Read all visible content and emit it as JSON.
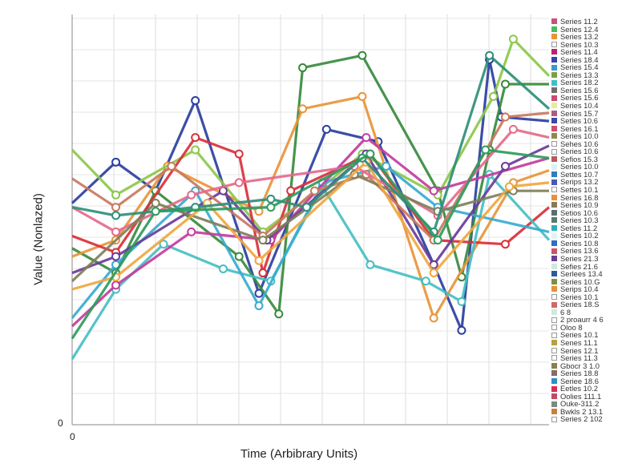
{
  "chart_data": {
    "type": "line",
    "title": "",
    "xlabel": "Time (Arbibrary Units)",
    "ylabel": "Value (Nonlazed)",
    "x_tick_labels": [
      "0"
    ],
    "y_tick_labels": [
      "0"
    ],
    "xlim": [
      0,
      12
    ],
    "ylim": [
      0,
      100
    ],
    "grid": true,
    "legend_position": "right",
    "series": [
      {
        "color": "#2b3fa0",
        "points": [
          [
            0,
            54
          ],
          [
            1.1,
            64
          ],
          [
            2.1,
            57
          ],
          [
            3.1,
            79
          ],
          [
            4.7,
            32
          ],
          [
            6.4,
            72
          ],
          [
            7.7,
            69
          ],
          [
            9.1,
            39
          ],
          [
            9.8,
            23
          ],
          [
            10.5,
            89
          ],
          [
            10.8,
            75
          ],
          [
            12,
            74
          ]
        ]
      },
      {
        "color": "#3a8a3e",
        "points": [
          [
            0,
            43
          ],
          [
            1.1,
            37
          ],
          [
            2.1,
            57
          ],
          [
            4.2,
            41
          ],
          [
            5.2,
            27
          ],
          [
            5.8,
            87
          ],
          [
            7.3,
            90
          ],
          [
            9.2,
            57
          ],
          [
            9.8,
            36
          ],
          [
            10.5,
            67
          ],
          [
            10.9,
            83
          ],
          [
            12,
            83
          ]
        ]
      },
      {
        "color": "#e8953a",
        "points": [
          [
            0,
            41
          ],
          [
            1.1,
            45
          ],
          [
            2.4,
            63
          ],
          [
            4.7,
            52
          ],
          [
            5.8,
            77
          ],
          [
            7.3,
            80
          ],
          [
            9.1,
            26
          ],
          [
            11.1,
            59
          ],
          [
            12,
            62
          ]
        ]
      },
      {
        "color": "#8cc84b",
        "points": [
          [
            0,
            67
          ],
          [
            1.1,
            56
          ],
          [
            3.1,
            67
          ],
          [
            4.8,
            47
          ],
          [
            6.3,
            58
          ],
          [
            7.3,
            66
          ],
          [
            9.2,
            56
          ],
          [
            10.6,
            80
          ],
          [
            11.1,
            94
          ],
          [
            12,
            85
          ]
        ]
      },
      {
        "color": "#d9303a",
        "points": [
          [
            0,
            46
          ],
          [
            1.1,
            42
          ],
          [
            3.1,
            70
          ],
          [
            4.2,
            66
          ],
          [
            4.8,
            37
          ],
          [
            5.5,
            57
          ],
          [
            7.5,
            66
          ],
          [
            9.1,
            45
          ],
          [
            10.9,
            44
          ],
          [
            12,
            53
          ]
        ]
      },
      {
        "color": "#47bfc2",
        "points": [
          [
            0,
            16
          ],
          [
            1.1,
            33
          ],
          [
            2.3,
            44
          ],
          [
            3.8,
            38
          ],
          [
            5.0,
            35
          ],
          [
            6.3,
            58
          ],
          [
            7.5,
            39
          ],
          [
            8.9,
            35
          ],
          [
            9.8,
            30
          ],
          [
            10.5,
            61
          ],
          [
            12,
            45
          ]
        ]
      },
      {
        "color": "#3aaad0",
        "points": [
          [
            0,
            26
          ],
          [
            1.1,
            39
          ],
          [
            3.1,
            57
          ],
          [
            4.7,
            29
          ],
          [
            6.3,
            59
          ],
          [
            7.9,
            63
          ],
          [
            9.2,
            53
          ],
          [
            12,
            47
          ]
        ]
      },
      {
        "color": "#c33da0",
        "points": [
          [
            0,
            24
          ],
          [
            1.1,
            34
          ],
          [
            3.0,
            47
          ],
          [
            5.0,
            45
          ],
          [
            7.4,
            70
          ],
          [
            9.1,
            57
          ],
          [
            12,
            65
          ]
        ]
      },
      {
        "color": "#6a3d9a",
        "points": [
          [
            0,
            37
          ],
          [
            1.1,
            41
          ],
          [
            3.8,
            57
          ],
          [
            4.9,
            45
          ],
          [
            7.4,
            66
          ],
          [
            9.1,
            39
          ],
          [
            10.9,
            63
          ],
          [
            12,
            68
          ]
        ]
      },
      {
        "color": "#c87a5e",
        "points": [
          [
            0,
            60
          ],
          [
            1.1,
            53
          ],
          [
            2.5,
            63
          ],
          [
            4.8,
            46
          ],
          [
            6.1,
            57
          ],
          [
            7.4,
            61
          ],
          [
            9.1,
            45
          ],
          [
            10.9,
            75
          ],
          [
            12,
            76
          ]
        ]
      },
      {
        "color": "#e56a8c",
        "points": [
          [
            0,
            53
          ],
          [
            1.1,
            47
          ],
          [
            3.0,
            56
          ],
          [
            4.2,
            59
          ],
          [
            7.1,
            63
          ],
          [
            9.2,
            51
          ],
          [
            11.1,
            72
          ],
          [
            12,
            70
          ]
        ]
      },
      {
        "color": "#7f7f5a",
        "points": [
          [
            0,
            35
          ],
          [
            2.1,
            54
          ],
          [
            4.8,
            45
          ],
          [
            7.1,
            61
          ],
          [
            9.2,
            52
          ],
          [
            11.1,
            57
          ],
          [
            12,
            57
          ]
        ]
      },
      {
        "color": "#f0a640",
        "points": [
          [
            0,
            33
          ],
          [
            1.1,
            36
          ],
          [
            3.4,
            54
          ],
          [
            4.7,
            40
          ],
          [
            7.4,
            64
          ],
          [
            9.1,
            37
          ],
          [
            11.0,
            58
          ],
          [
            12,
            59
          ]
        ]
      },
      {
        "color": "#2f8f7a",
        "points": [
          [
            0,
            53
          ],
          [
            1.1,
            51
          ],
          [
            3.1,
            53
          ],
          [
            5.0,
            55
          ],
          [
            5.9,
            53
          ],
          [
            7.3,
            65
          ],
          [
            9.1,
            47
          ],
          [
            10.5,
            90
          ],
          [
            12,
            77
          ]
        ]
      },
      {
        "color": "#2e9c5c",
        "points": [
          [
            0,
            21
          ],
          [
            2.1,
            52
          ],
          [
            5.0,
            53
          ],
          [
            7.5,
            66
          ],
          [
            9.2,
            45
          ],
          [
            10.4,
            67
          ],
          [
            12,
            65
          ]
        ]
      }
    ]
  },
  "legend": [
    {
      "label": "Series 11.2",
      "color": "#c9507a"
    },
    {
      "label": "Series 12.4",
      "color": "#4cbb5a"
    },
    {
      "label": "Series 13.2",
      "color": "#e8953a"
    },
    {
      "label": "Series 10.3",
      "color": "#ffffff"
    },
    {
      "label": "Series 11.4",
      "color": "#c21f6c"
    },
    {
      "label": "Series 18.4",
      "color": "#3346a8"
    },
    {
      "label": "Series 15.4",
      "color": "#3a9ac9"
    },
    {
      "label": "Series 13.3",
      "color": "#7fa040"
    },
    {
      "label": "Series 18.2",
      "color": "#3fbfc8"
    },
    {
      "label": "Series 15.6",
      "color": "#707070"
    },
    {
      "label": "Series 15.6",
      "color": "#c94a72"
    },
    {
      "label": "Series 10.4",
      "color": "#e8ec9a"
    },
    {
      "label": "Series 15.7",
      "color": "#b05a7a"
    },
    {
      "label": "Setles 10.6",
      "color": "#3a48a8"
    },
    {
      "label": "Series 16.1",
      "color": "#d0506a"
    },
    {
      "label": "Series 10.0",
      "color": "#8f8a50"
    },
    {
      "label": "Sehes 10.6",
      "color": "#ffffff"
    },
    {
      "label": "Series 10.6",
      "color": "#ffffff"
    },
    {
      "label": "Sefios 15.3",
      "color": "#b85a5a"
    },
    {
      "label": "Series 10.0",
      "color": "#d8f4ee"
    },
    {
      "label": "Settes 10.7",
      "color": "#2a7fc0"
    },
    {
      "label": "Serips 13.2",
      "color": "#4a58b8"
    },
    {
      "label": "Settes 10.1",
      "color": "#ffffff"
    },
    {
      "label": "Series 16.8",
      "color": "#e8903a"
    },
    {
      "label": "Series 10.9",
      "color": "#8a7a50"
    },
    {
      "label": "Setios 10.6",
      "color": "#5a7070"
    },
    {
      "label": "Series 10.3",
      "color": "#5a7a70"
    },
    {
      "label": "Setles 11.2",
      "color": "#2ab0b8"
    },
    {
      "label": "Series 10.2",
      "color": "#e0f4f0"
    },
    {
      "label": "Series 10.8",
      "color": "#2f6cc8"
    },
    {
      "label": "Series 13.6",
      "color": "#d0506a"
    },
    {
      "label": "Series 21.3",
      "color": "#6a3d9a"
    },
    {
      "label": "Sefies 21.6",
      "color": "#cdeadc"
    },
    {
      "label": "Serlees 13.4",
      "color": "#2f5a9a"
    },
    {
      "label": "Series 10.G",
      "color": "#7f8f40"
    },
    {
      "label": "Serips 10.4",
      "color": "#e8903a"
    },
    {
      "label": "Series 10.1",
      "color": "#ffffff"
    },
    {
      "label": "Series 18.S",
      "color": "#d06a6a"
    },
    {
      "label": "6 8",
      "color": "#d0e8e0"
    },
    {
      "label": "2 proaurr 4 6",
      "color": "#ffffff"
    },
    {
      "label": "Oloo 8",
      "color": "#ffffff"
    },
    {
      "label": "Series 10.1",
      "color": "#ffffff"
    },
    {
      "label": "Senes 11.1",
      "color": "#b8a040"
    },
    {
      "label": "Series 12.1",
      "color": "#ffffff"
    },
    {
      "label": "Series 11.3",
      "color": "#ffffff"
    },
    {
      "label": "Gbocr 3 1.0",
      "color": "#8a8050"
    },
    {
      "label": "Series 18.8",
      "color": "#8a6a6a"
    },
    {
      "label": "Seriee 18.6",
      "color": "#2a90c8"
    },
    {
      "label": "Eetles 10.2",
      "color": "#e02a50"
    },
    {
      "label": "Oolies 111.1",
      "color": "#c04a6a"
    },
    {
      "label": "Ouke-311.2",
      "color": "#7a8a80"
    },
    {
      "label": "Bwkls 2 13.1",
      "color": "#c8803a"
    },
    {
      "label": "Series 2 102",
      "color": "#ffffff"
    }
  ]
}
